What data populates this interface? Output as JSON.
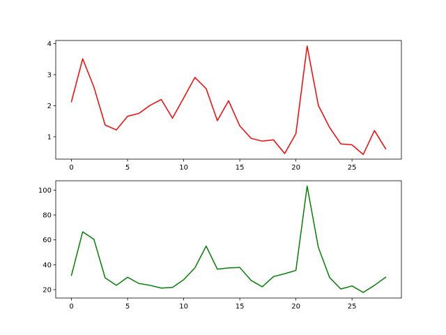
{
  "figure": {
    "background": "#ffffff"
  },
  "chart_data": [
    {
      "type": "line",
      "title": "",
      "xlabel": "",
      "ylabel": "",
      "xlim": [
        -1.4,
        29.4
      ],
      "ylim": [
        0.28,
        4.1
      ],
      "xticks": [
        0,
        5,
        10,
        15,
        20,
        25
      ],
      "yticks": [
        1,
        2,
        3,
        4
      ],
      "grid": false,
      "legend": "none",
      "series": [
        {
          "color": "#ff0000",
          "x": [
            0,
            1,
            2,
            3,
            4,
            5,
            6,
            7,
            8,
            9,
            10,
            11,
            12,
            13,
            14,
            15,
            16,
            17,
            18,
            19,
            20,
            21,
            22,
            23,
            24,
            25,
            26,
            27,
            28
          ],
          "y": [
            2.13,
            3.51,
            2.6,
            1.38,
            1.22,
            1.66,
            1.75,
            2.01,
            2.2,
            1.6,
            2.25,
            2.91,
            2.55,
            1.52,
            2.16,
            1.35,
            0.95,
            0.86,
            0.9,
            0.46,
            1.1,
            3.92,
            2.01,
            1.3,
            0.77,
            0.74,
            0.43,
            1.2,
            0.61
          ]
        }
      ]
    },
    {
      "type": "line",
      "title": "",
      "xlabel": "",
      "ylabel": "",
      "xlim": [
        -1.4,
        29.4
      ],
      "ylim": [
        13.3,
        107.5
      ],
      "xticks": [
        0,
        5,
        10,
        15,
        20,
        25
      ],
      "yticks": [
        20,
        40,
        60,
        80,
        100
      ],
      "grid": false,
      "legend": "none",
      "series": [
        {
          "color": "#008000",
          "x": [
            0,
            1,
            2,
            3,
            4,
            5,
            6,
            7,
            8,
            9,
            10,
            11,
            12,
            13,
            14,
            15,
            16,
            17,
            18,
            19,
            20,
            21,
            22,
            23,
            24,
            25,
            26,
            27,
            28
          ],
          "y": [
            31.5,
            66.5,
            60.5,
            29.5,
            23.5,
            30.0,
            25.0,
            23.5,
            21.3,
            21.8,
            28.0,
            37.5,
            55.0,
            36.5,
            37.5,
            37.8,
            27.5,
            22.3,
            30.5,
            32.8,
            35.5,
            103.2,
            54.0,
            29.8,
            20.5,
            23.0,
            17.8,
            23.5,
            30.0
          ]
        }
      ]
    }
  ]
}
